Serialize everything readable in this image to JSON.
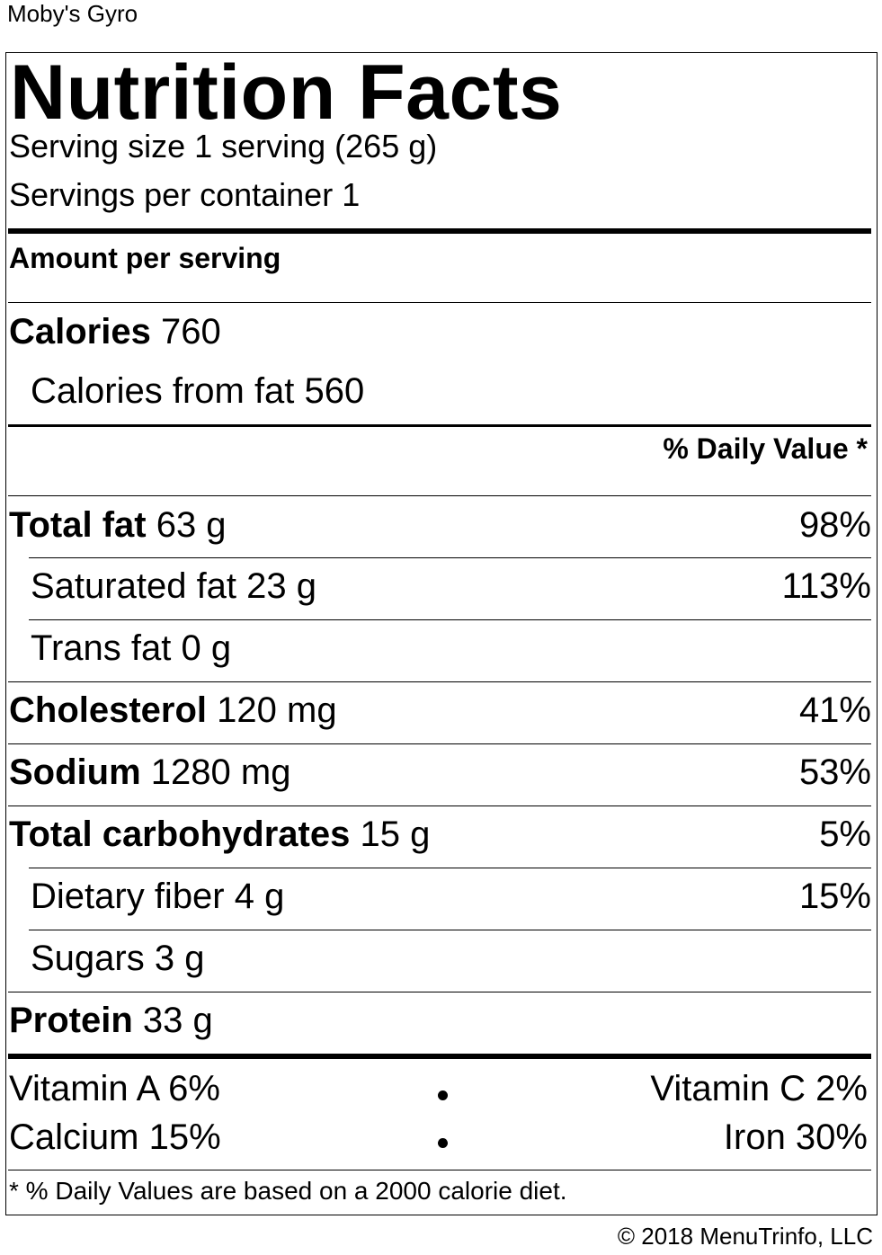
{
  "item_name": "Moby's Gyro",
  "label_title": "Nutrition Facts",
  "serving_size": "Serving size 1 serving (265 g)",
  "servings_per_container": "Servings per container 1",
  "amount_per_serving": "Amount per serving",
  "calories": {
    "label": "Calories",
    "value": "760"
  },
  "calories_from_fat": "Calories from fat 560",
  "daily_value_header": "% Daily Value *",
  "nutrients": [
    {
      "label": "Total fat",
      "amount": "63 g",
      "dv": "98%"
    },
    {
      "label": "Saturated fat",
      "amount": "23 g",
      "dv": "113%"
    },
    {
      "label": "Trans fat",
      "amount": "0 g",
      "dv": ""
    },
    {
      "label": "Cholesterol",
      "amount": "120 mg",
      "dv": "41%"
    },
    {
      "label": "Sodium",
      "amount": "1280 mg",
      "dv": "53%"
    },
    {
      "label": "Total carbohydrates",
      "amount": "15 g",
      "dv": "5%"
    },
    {
      "label": "Dietary fiber",
      "amount": "4 g",
      "dv": "15%"
    },
    {
      "label": "Sugars",
      "amount": "3 g",
      "dv": ""
    },
    {
      "label": "Protein",
      "amount": "33 g",
      "dv": ""
    }
  ],
  "vitamins": {
    "vitamin_a": "Vitamin A 6%",
    "vitamin_c": "Vitamin C 2%",
    "calcium": "Calcium 15%",
    "iron": "Iron 30%"
  },
  "footnote": "* % Daily Values are based on a 2000 calorie diet.",
  "copyright": "© 2018 MenuTrinfo, LLC"
}
